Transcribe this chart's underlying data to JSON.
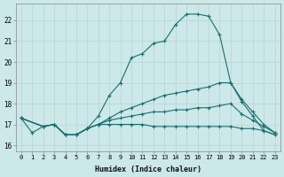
{
  "xlabel": "Humidex (Indice chaleur)",
  "background_color": "#cce8e8",
  "grid_color": "#b8d8d8",
  "line_color": "#1a6e6e",
  "xlim": [
    -0.5,
    23.5
  ],
  "ylim": [
    15.7,
    22.8
  ],
  "yticks": [
    16,
    17,
    18,
    19,
    20,
    21,
    22
  ],
  "xticks": [
    0,
    1,
    2,
    3,
    4,
    5,
    6,
    7,
    8,
    9,
    10,
    11,
    12,
    13,
    14,
    15,
    16,
    17,
    18,
    19,
    20,
    21,
    22,
    23
  ],
  "lines": [
    {
      "x": [
        0,
        1,
        2,
        3,
        4,
        5,
        6,
        7,
        8,
        9,
        10,
        11,
        12,
        13,
        14,
        15,
        16,
        17,
        18,
        19,
        20,
        21,
        22,
        23
      ],
      "y": [
        17.3,
        16.6,
        16.9,
        17.0,
        16.5,
        16.5,
        16.8,
        17.4,
        18.4,
        19.0,
        20.2,
        20.4,
        20.9,
        21.0,
        21.8,
        22.3,
        22.3,
        22.2,
        21.3,
        19.0,
        18.1,
        17.4,
        16.7,
        16.5
      ]
    },
    {
      "x": [
        0,
        2,
        3,
        4,
        5,
        6,
        7,
        8,
        9,
        10,
        11,
        12,
        13,
        14,
        15,
        16,
        17,
        18,
        19,
        20,
        21,
        22,
        23
      ],
      "y": [
        17.3,
        16.9,
        17.0,
        16.5,
        16.5,
        16.8,
        17.0,
        17.3,
        17.6,
        17.8,
        18.0,
        18.2,
        18.4,
        18.5,
        18.6,
        18.7,
        18.8,
        19.0,
        19.0,
        18.2,
        17.6,
        17.0,
        16.6
      ]
    },
    {
      "x": [
        0,
        2,
        3,
        4,
        5,
        6,
        7,
        8,
        9,
        10,
        11,
        12,
        13,
        14,
        15,
        16,
        17,
        18,
        19,
        20,
        21,
        22,
        23
      ],
      "y": [
        17.3,
        16.9,
        17.0,
        16.5,
        16.5,
        16.8,
        17.0,
        17.2,
        17.3,
        17.4,
        17.5,
        17.6,
        17.6,
        17.7,
        17.7,
        17.8,
        17.8,
        17.9,
        18.0,
        17.5,
        17.2,
        16.9,
        16.6
      ]
    },
    {
      "x": [
        0,
        2,
        3,
        4,
        5,
        6,
        7,
        8,
        9,
        10,
        11,
        12,
        13,
        14,
        15,
        16,
        17,
        18,
        19,
        20,
        21,
        22,
        23
      ],
      "y": [
        17.3,
        16.9,
        17.0,
        16.5,
        16.5,
        16.8,
        17.0,
        17.0,
        17.0,
        17.0,
        17.0,
        16.9,
        16.9,
        16.9,
        16.9,
        16.9,
        16.9,
        16.9,
        16.9,
        16.8,
        16.8,
        16.7,
        16.5
      ]
    }
  ]
}
